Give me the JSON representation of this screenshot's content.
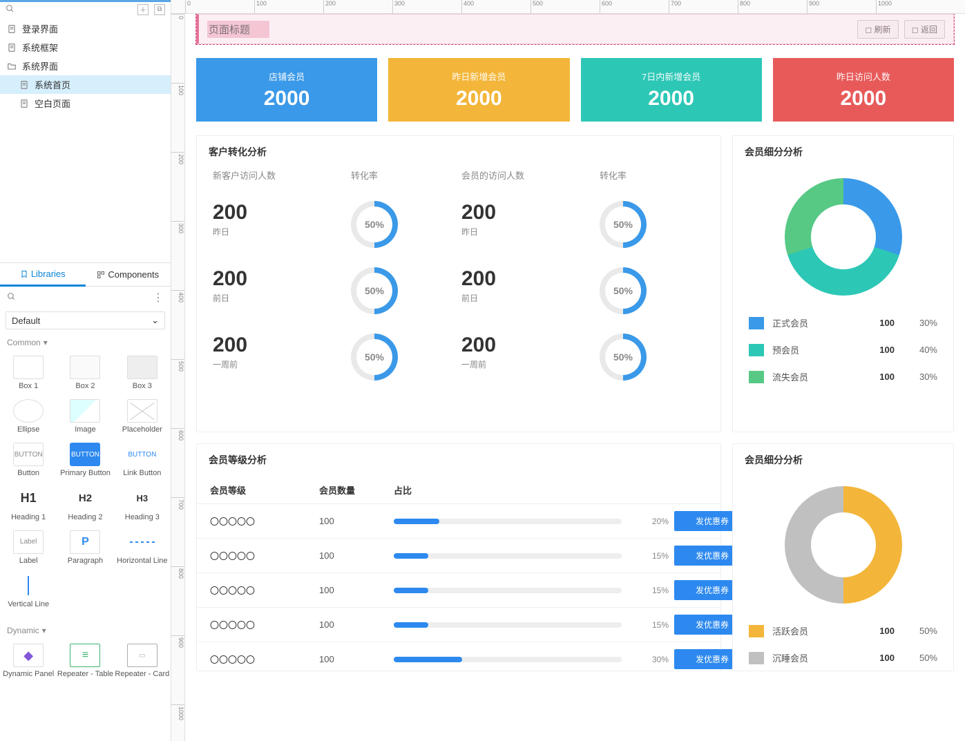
{
  "colors": {
    "accent": "#2d89ef",
    "stat": [
      "#3a99e8",
      "#f3b63a",
      "#2dc7b6",
      "#e85a5a"
    ],
    "donut1": [
      "#3a99e8",
      "#2dc7b6",
      "#57c985"
    ],
    "donut2": [
      "#f3b63a",
      "#c0c0c0"
    ],
    "ring": "#3a99e8"
  },
  "sidebar": {
    "pages": [
      {
        "label": "登录界面",
        "icon": "page",
        "indent": false
      },
      {
        "label": "系统框架",
        "icon": "page",
        "indent": false
      },
      {
        "label": "系统界面",
        "icon": "folder",
        "indent": false
      },
      {
        "label": "系统首页",
        "icon": "page",
        "indent": true,
        "selected": true
      },
      {
        "label": "空白页面",
        "icon": "page",
        "indent": true
      }
    ]
  },
  "libraries": {
    "tab_libraries": "Libraries",
    "tab_components": "Components",
    "selected_set": "Default",
    "sections": [
      {
        "title": "Common",
        "items": [
          {
            "label": "Box 1",
            "kind": "box1"
          },
          {
            "label": "Box 2",
            "kind": "box2"
          },
          {
            "label": "Box 3",
            "kind": "box3"
          },
          {
            "label": "Ellipse",
            "kind": "ellipse"
          },
          {
            "label": "Image",
            "kind": "image"
          },
          {
            "label": "Placeholder",
            "kind": "placeholder"
          },
          {
            "label": "Button",
            "kind": "button"
          },
          {
            "label": "Primary Button",
            "kind": "primary"
          },
          {
            "label": "Link Button",
            "kind": "link"
          },
          {
            "label": "Heading 1",
            "kind": "h1"
          },
          {
            "label": "Heading 2",
            "kind": "h2"
          },
          {
            "label": "Heading 3",
            "kind": "h3"
          },
          {
            "label": "Label",
            "kind": "label"
          },
          {
            "label": "Paragraph",
            "kind": "paragraph"
          },
          {
            "label": "Horizontal Line",
            "kind": "hline"
          },
          {
            "label": "Vertical Line",
            "kind": "vline"
          }
        ]
      },
      {
        "title": "Dynamic",
        "items": [
          {
            "label": "Dynamic Panel",
            "kind": "dynpanel"
          },
          {
            "label": "Repeater - Table",
            "kind": "reptable"
          },
          {
            "label": "Repeater - Card",
            "kind": "repcard"
          }
        ]
      }
    ],
    "thumb_text": {
      "button": "BUTTON",
      "primary": "BUTTON",
      "link": "BUTTON",
      "h1": "H1",
      "h2": "H2",
      "h3": "H3",
      "label": "Label"
    }
  },
  "ruler": {
    "ticks": [
      0,
      100,
      200,
      300,
      400,
      500,
      600,
      700,
      800,
      900,
      1000
    ]
  },
  "dashboard": {
    "header": {
      "title": "页面标题",
      "refresh": "刷新",
      "back": "返回"
    },
    "stats": [
      {
        "label": "店铺会员",
        "value": "2000"
      },
      {
        "label": "昨日新增会员",
        "value": "2000"
      },
      {
        "label": "7日内新增会员",
        "value": "2000"
      },
      {
        "label": "昨日访问人数",
        "value": "2000"
      }
    ],
    "conversion": {
      "title": "客户转化分析",
      "col_new": "新客户访问人数",
      "col_rate": "转化率",
      "col_member": "会员的访问人数",
      "rows": [
        {
          "new_val": "200",
          "new_sub": "昨日",
          "rate1": 50,
          "mem_val": "200",
          "mem_sub": "昨日",
          "rate2": 50
        },
        {
          "new_val": "200",
          "new_sub": "前日",
          "rate1": 50,
          "mem_val": "200",
          "mem_sub": "前日",
          "rate2": 50
        },
        {
          "new_val": "200",
          "new_sub": "一周前",
          "rate1": 50,
          "mem_val": "200",
          "mem_sub": "一周前",
          "rate2": 50
        }
      ]
    },
    "segment1": {
      "title": "会员细分分析",
      "items": [
        {
          "label": "正式会员",
          "value": "100",
          "pct": "30%",
          "num": 30
        },
        {
          "label": "预会员",
          "value": "100",
          "pct": "40%",
          "num": 40
        },
        {
          "label": "流失会员",
          "value": "100",
          "pct": "30%",
          "num": 30
        }
      ]
    },
    "levels": {
      "title": "会员等级分析",
      "col_level": "会员等级",
      "col_count": "会员数量",
      "col_ratio": "占比",
      "coupon_label": "发优惠券",
      "rows": [
        {
          "name": "〇〇〇〇〇",
          "count": "100",
          "pct": 20,
          "pct_label": "20%"
        },
        {
          "name": "〇〇〇〇〇",
          "count": "100",
          "pct": 15,
          "pct_label": "15%"
        },
        {
          "name": "〇〇〇〇〇",
          "count": "100",
          "pct": 15,
          "pct_label": "15%"
        },
        {
          "name": "〇〇〇〇〇",
          "count": "100",
          "pct": 15,
          "pct_label": "15%"
        },
        {
          "name": "〇〇〇〇〇",
          "count": "100",
          "pct": 30,
          "pct_label": "30%"
        }
      ]
    },
    "segment2": {
      "title": "会员细分分析",
      "items": [
        {
          "label": "活跃会员",
          "value": "100",
          "pct": "50%",
          "num": 50
        },
        {
          "label": "沉睡会员",
          "value": "100",
          "pct": "50%",
          "num": 50
        }
      ]
    }
  }
}
